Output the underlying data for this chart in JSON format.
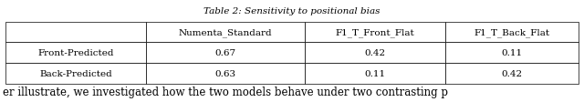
{
  "title": "Table 2: Sensitivity to positional bias",
  "col_headers": [
    "",
    "Numenta_Standard",
    "F1_T_Front_Flat",
    "F1_T_Back_Flat"
  ],
  "rows": [
    [
      "Front-Predicted",
      "0.67",
      "0.42",
      "0.11"
    ],
    [
      "Back-Predicted",
      "0.63",
      "0.11",
      "0.42"
    ]
  ],
  "footer_text": "er illustrate, we investigated how the two models behave under two contrasting p",
  "title_fontsize": 7.5,
  "table_fontsize": 7.5,
  "footer_fontsize": 8.5,
  "bg_color": "#ffffff",
  "fig_width": 6.4,
  "fig_height": 1.13,
  "title_fontstyle": "italic",
  "title_fontfamily": "serif",
  "footer_fontfamily": "serif"
}
